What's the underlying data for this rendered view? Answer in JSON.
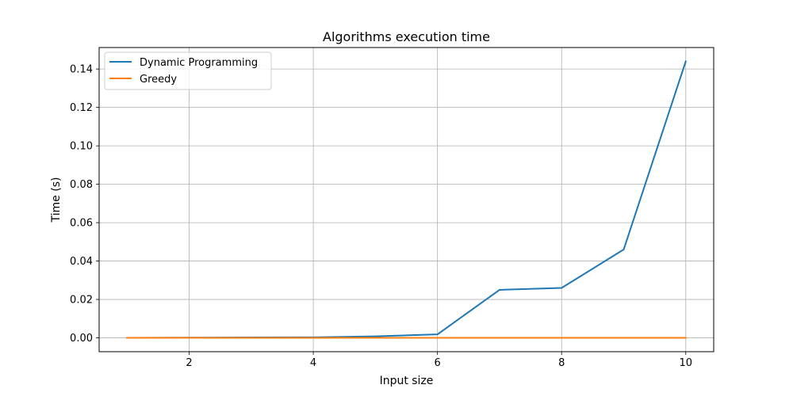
{
  "chart_data": {
    "type": "line",
    "title": "Algorithms execution time",
    "xlabel": "Input size",
    "ylabel": "Time (s)",
    "x": [
      1,
      2,
      3,
      4,
      5,
      6,
      7,
      8,
      9,
      10
    ],
    "series": [
      {
        "name": "Dynamic Programming",
        "color": "#1f77b4",
        "values": [
          0.0,
          0.0001,
          0.0002,
          0.0003,
          0.0008,
          0.0018,
          0.025,
          0.026,
          0.046,
          0.144
        ]
      },
      {
        "name": "Greedy",
        "color": "#ff7f0e",
        "values": [
          0.0,
          0.0,
          0.0,
          0.0,
          0.0,
          0.0,
          0.0,
          0.0,
          0.0,
          0.0
        ]
      }
    ],
    "xlim": [
      0.55,
      10.45
    ],
    "ylim": [
      -0.0072,
      0.1512
    ],
    "xticks": [
      2,
      4,
      6,
      8,
      10
    ],
    "xtick_labels": [
      "2",
      "4",
      "6",
      "8",
      "10"
    ],
    "yticks": [
      0.0,
      0.02,
      0.04,
      0.06,
      0.08,
      0.1,
      0.12,
      0.14
    ],
    "ytick_labels": [
      "0.00",
      "0.02",
      "0.04",
      "0.06",
      "0.08",
      "0.10",
      "0.12",
      "0.14"
    ],
    "grid": true,
    "legend_position": "upper-left"
  }
}
